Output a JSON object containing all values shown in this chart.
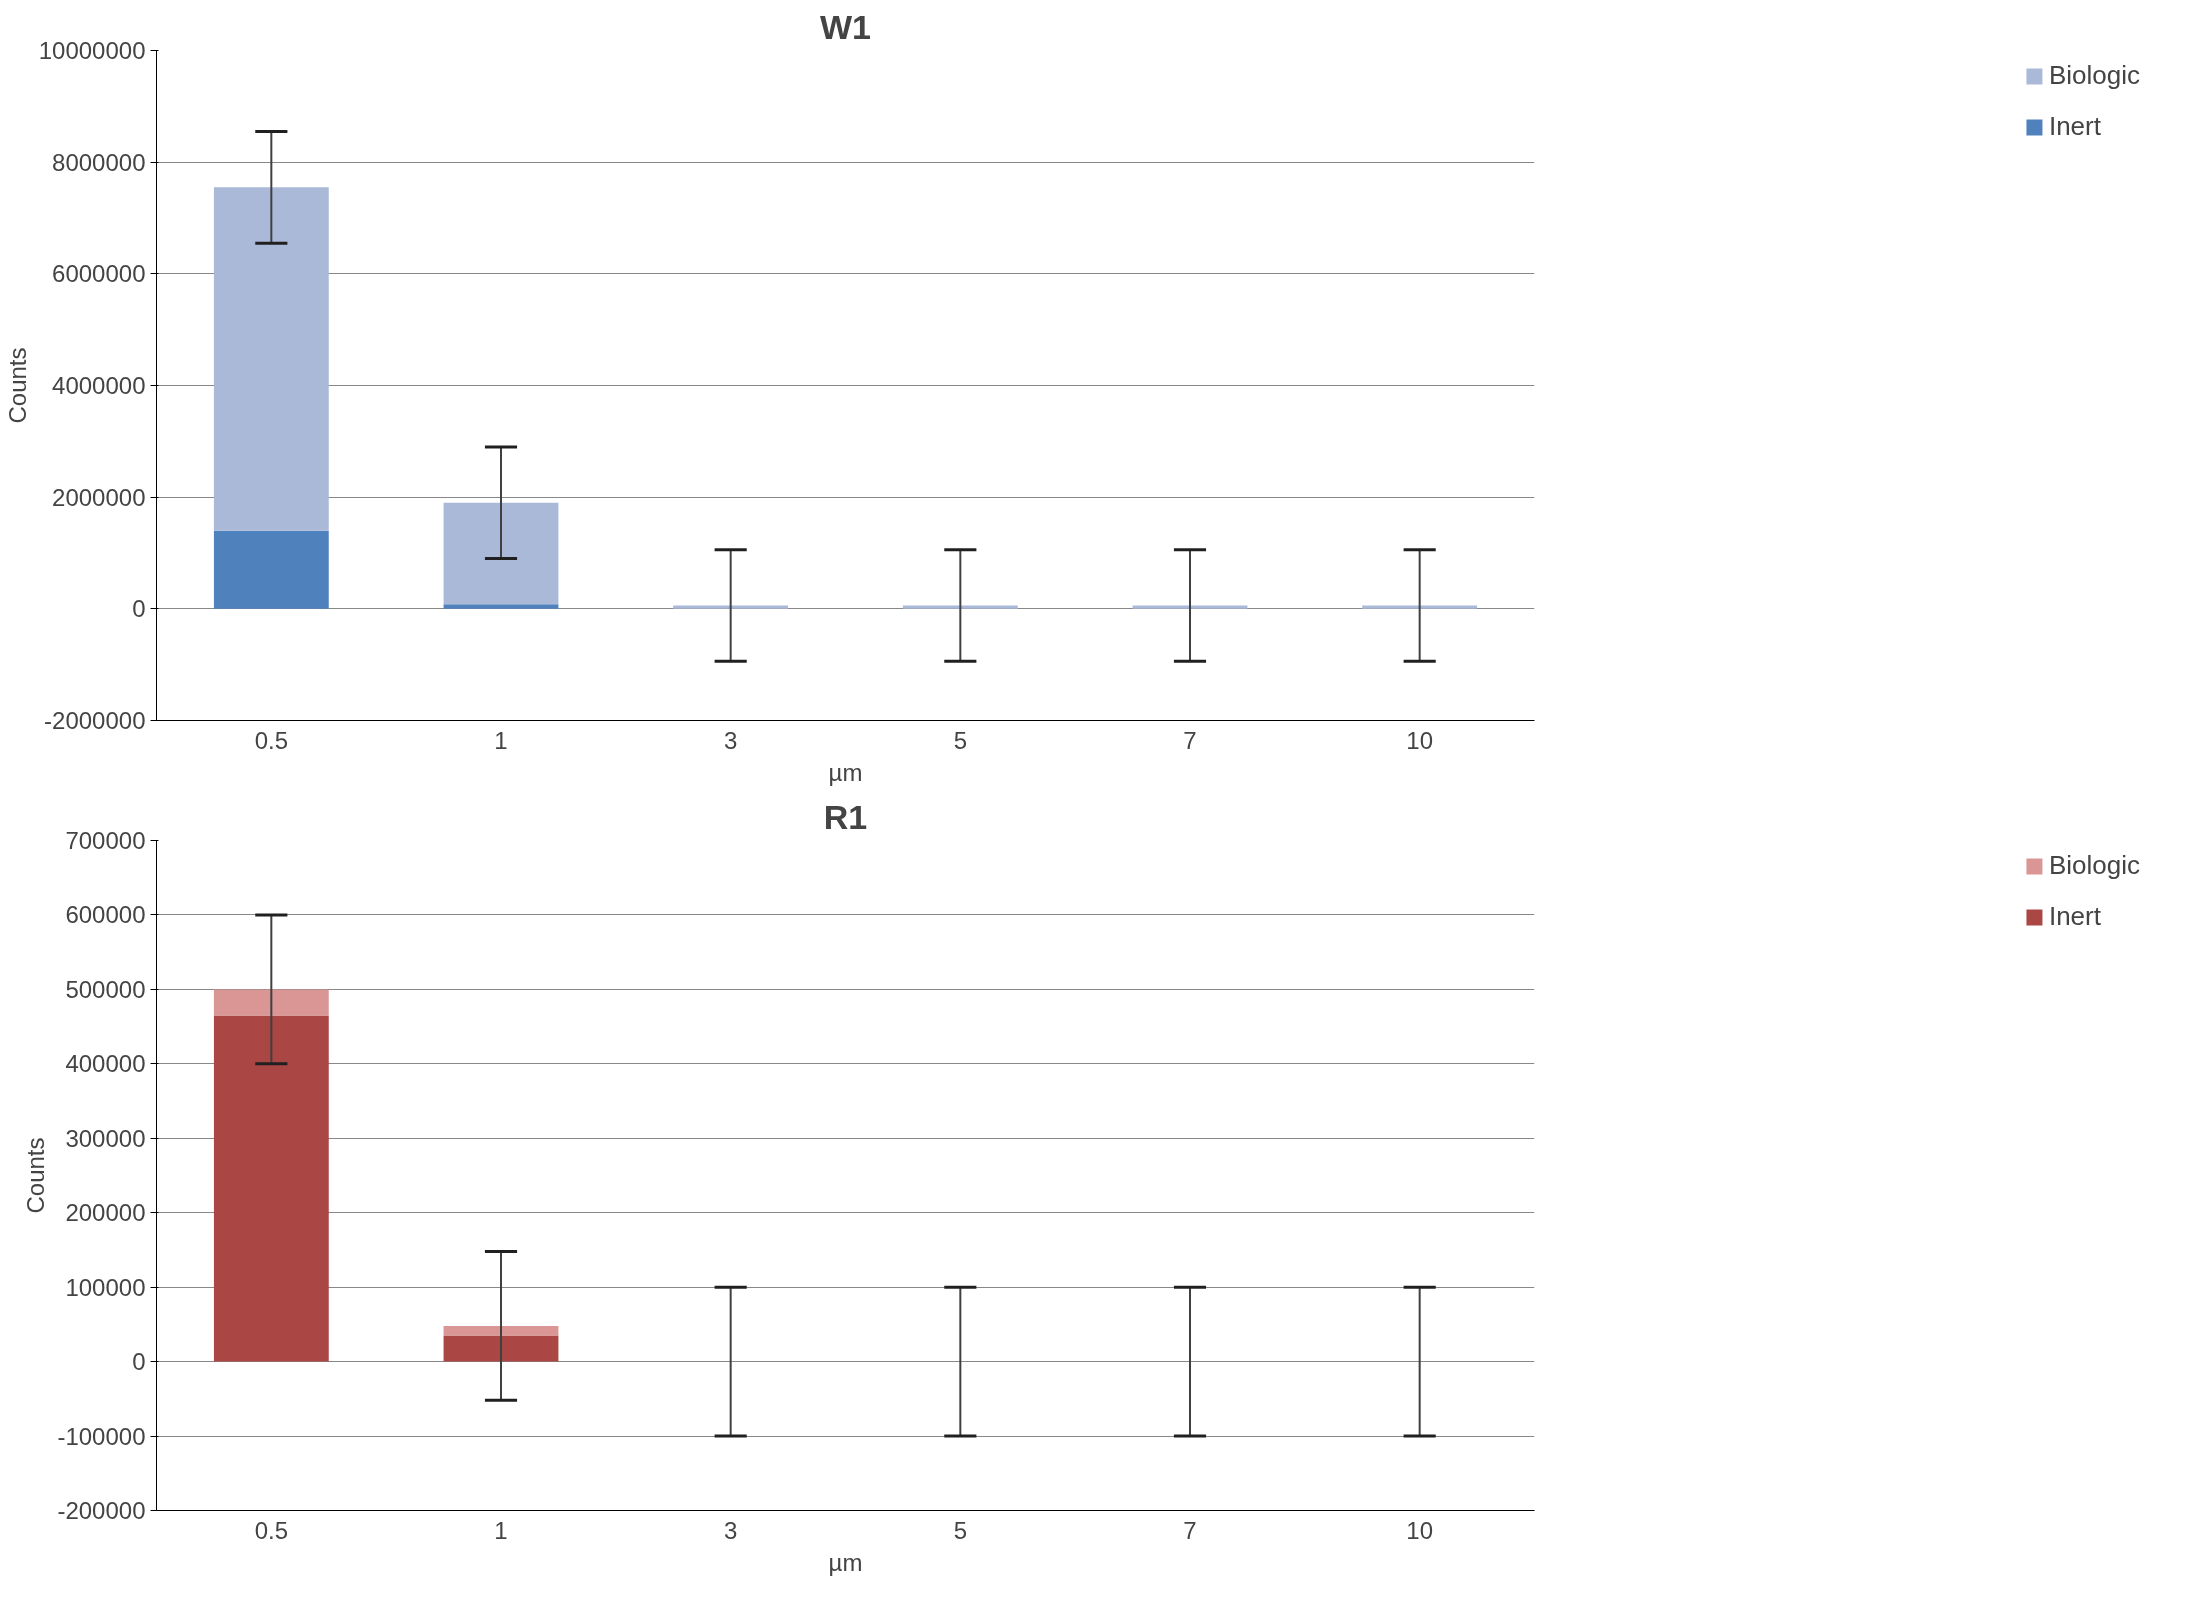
{
  "chart_data": [
    {
      "type": "bar",
      "title": "W1",
      "xlabel": "µm",
      "ylabel": "Counts",
      "categories": [
        "0.5",
        "1",
        "3",
        "5",
        "7",
        "10"
      ],
      "stacked": true,
      "ylim": [
        -2000000,
        10000000
      ],
      "yticks": [
        -2000000,
        0,
        2000000,
        4000000,
        6000000,
        8000000,
        10000000
      ],
      "grid": "y",
      "legend": "right",
      "series": [
        {
          "name": "Inert",
          "color": "#4f81bd",
          "values": [
            1400000,
            80000,
            0,
            0,
            0,
            0
          ]
        },
        {
          "name": "Biologic",
          "color": "#aab9d8",
          "values": [
            6150000,
            1820000,
            60000,
            60000,
            60000,
            60000
          ],
          "errors": [
            1000000,
            1000000,
            1000000,
            1000000,
            1000000,
            1000000
          ]
        }
      ]
    },
    {
      "type": "bar",
      "title": "R1",
      "xlabel": "µm",
      "ylabel": "Counts",
      "categories": [
        "0.5",
        "1",
        "3",
        "5",
        "7",
        "10"
      ],
      "stacked": true,
      "ylim": [
        -200000,
        700000
      ],
      "yticks": [
        -200000,
        -100000,
        0,
        100000,
        200000,
        300000,
        400000,
        500000,
        600000,
        700000
      ],
      "grid": "y",
      "legend": "right",
      "series": [
        {
          "name": "Inert",
          "color": "#aa4643",
          "values": [
            465000,
            35000,
            0,
            0,
            0,
            0
          ]
        },
        {
          "name": "Biologic",
          "color": "#d99694",
          "values": [
            35000,
            13000,
            0,
            0,
            0,
            0
          ],
          "errors": [
            100000,
            100000,
            100000,
            100000,
            100000,
            100000
          ]
        }
      ]
    }
  ]
}
